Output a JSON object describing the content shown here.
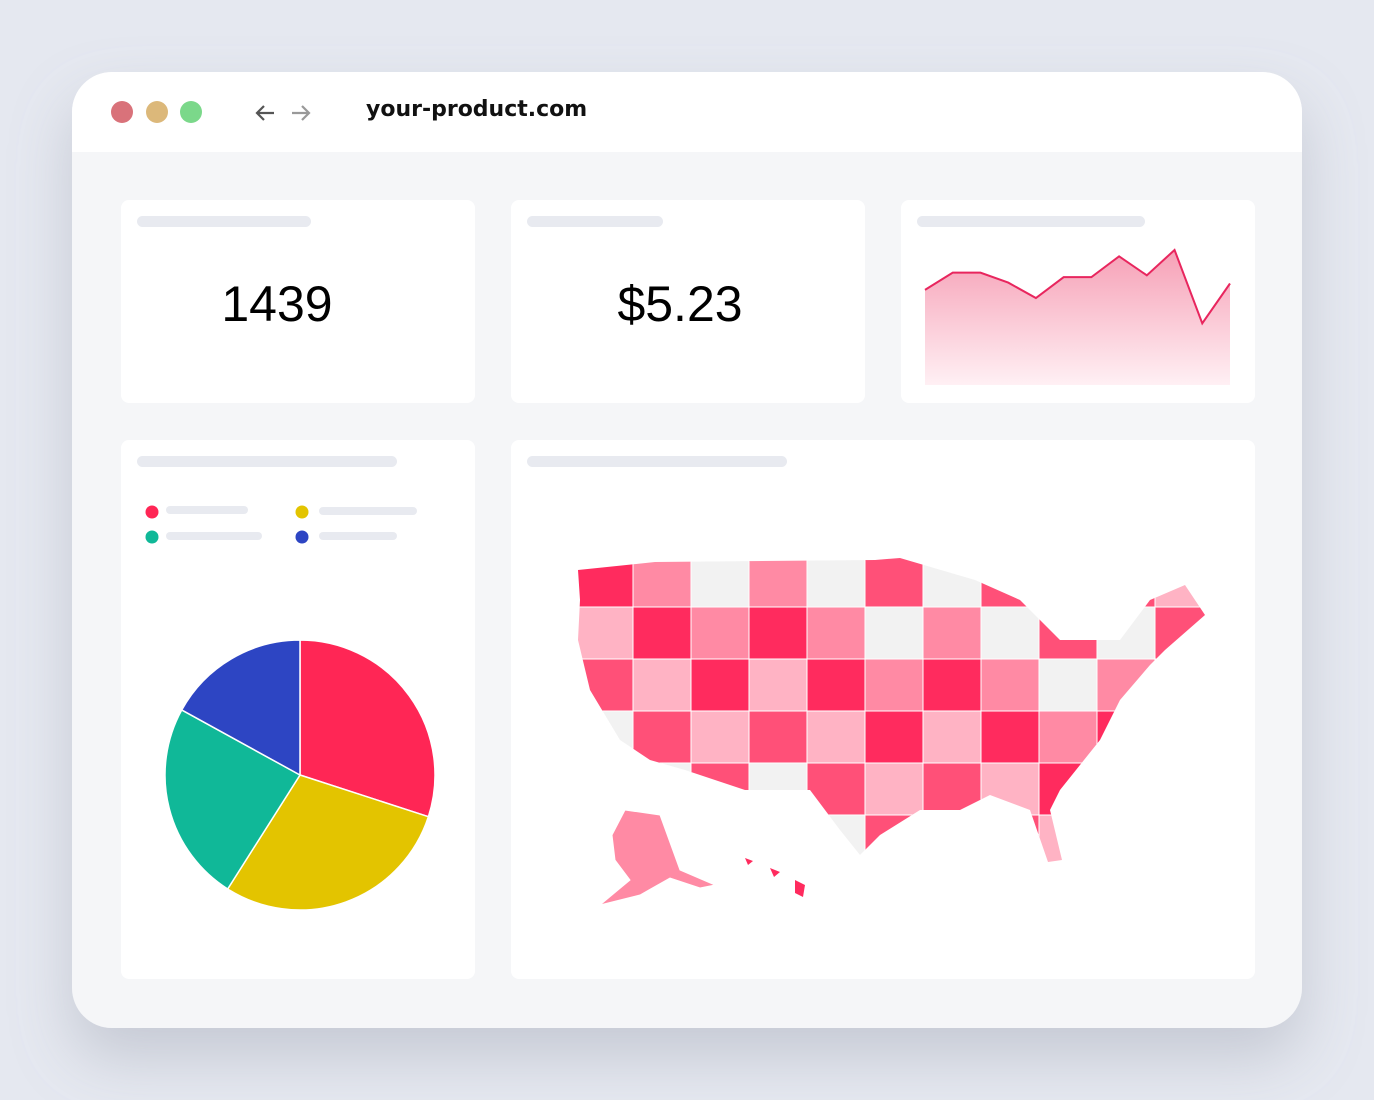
{
  "browser": {
    "url": "your-product.com"
  },
  "kpis": [
    "1439",
    "$5.23"
  ],
  "sparkline": {
    "type": "line",
    "values": [
      105,
      124,
      124,
      113,
      96,
      119,
      119,
      142,
      121,
      149,
      68,
      112
    ],
    "ylim": [
      0,
      160
    ],
    "color": "#e8265e"
  },
  "pie": {
    "type": "pie",
    "values": [
      30,
      29,
      24,
      17
    ],
    "colors": [
      "#ff2655",
      "#e3c400",
      "#10b898",
      "#2d45c3"
    ]
  }
}
